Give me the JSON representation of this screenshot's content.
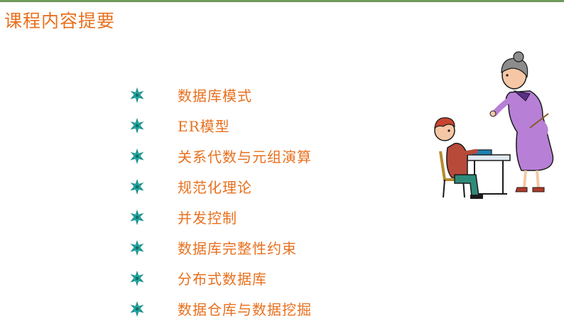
{
  "slide": {
    "title": "课程内容提要",
    "accent_color": "#e8701e",
    "bullet_color": "#1a8f8a",
    "bullet_icon": "teal-starburst-bullet",
    "items": [
      {
        "label": "数据库模式"
      },
      {
        "label": "ER模型"
      },
      {
        "label": "关系代数与元组演算"
      },
      {
        "label": "规范化理论"
      },
      {
        "label": "并发控制"
      },
      {
        "label": "数据库完整性约束"
      },
      {
        "label": "分布式数据库"
      },
      {
        "label": "数据仓库与数据挖掘"
      }
    ],
    "illustration": "teacher-and-student-clipart"
  }
}
